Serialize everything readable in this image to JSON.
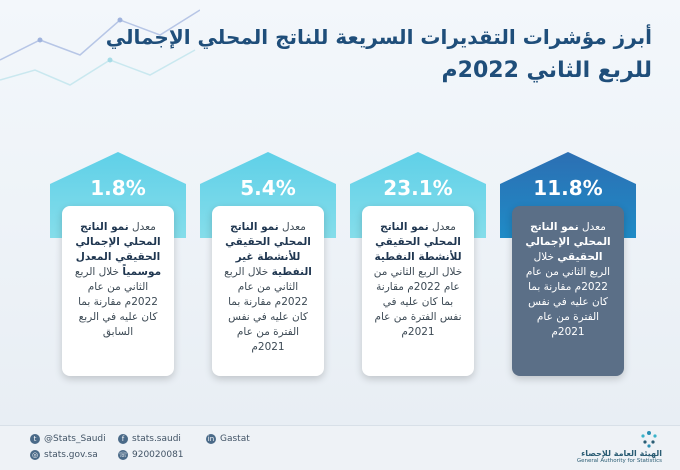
{
  "title": {
    "line1": "أبرز مؤشرات التقديرات السريعة للناتج المحلي الإجمالي",
    "line2": "للربع الثاني 2022م"
  },
  "cards": [
    {
      "percent": "11.8%",
      "style": "dark",
      "pre": "معدل ",
      "bold": "نمو الناتج المحلي الإجمالي الحقيقي",
      "post": " خلال الربع الثاني من عام 2022م مقارنة بما كان عليه في نفس الفترة من عام 2021م"
    },
    {
      "percent": "23.1%",
      "style": "light",
      "pre": "معدل ",
      "bold": "نمو الناتج المحلي الحقيقي للأنشطة النفطية",
      "post": " خلال الربع الثاني من عام 2022م مقارنة بما كان عليه في نفس الفترة من عام 2021م"
    },
    {
      "percent": "5.4%",
      "style": "light",
      "pre": "معدل ",
      "bold": "نمو الناتج المحلي الحقيقي للأنشطة غير النفطية",
      "post": " خلال الربع الثاني من عام 2022م مقارنة بما كان عليه في نفس الفترة من عام 2021م"
    },
    {
      "percent": "1.8%",
      "style": "light",
      "pre": "معدل ",
      "bold": "نمو الناتج المحلي الإجمالي الحقيقي المعدل موسمياً",
      "post": " خلال الربع الثاني من عام 2022م مقارنة بما كان عليه في الربع السابق"
    }
  ],
  "footer": {
    "twitter": "@Stats_Saudi",
    "facebook": "stats.saudi",
    "linkedin": "Gastat",
    "website": "stats.gov.sa",
    "phone": "920020081",
    "logo_ar": "الهيئة العامة للإحصاء",
    "logo_en": "General Authority for Statistics"
  },
  "colors": {
    "title": "#1f4e7a",
    "arrow_light": "#5fd0e8",
    "arrow_dark": "#2c6fb3",
    "dark_card": "#5b6f87"
  }
}
